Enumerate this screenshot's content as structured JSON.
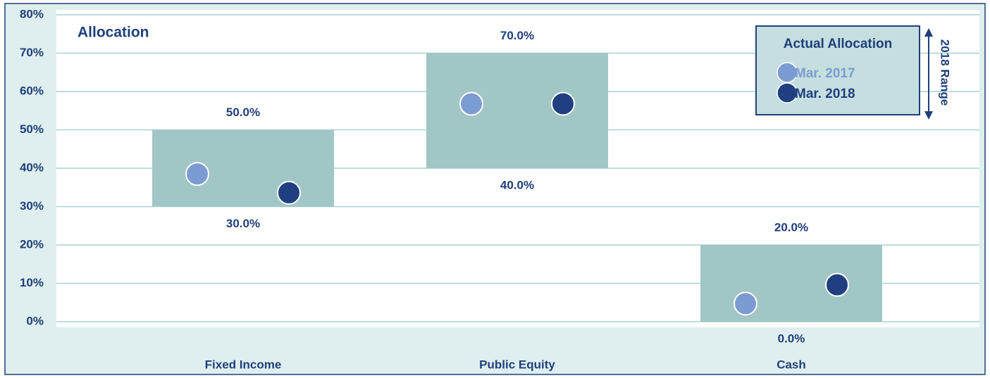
{
  "chart_data": {
    "type": "range",
    "title": "Allocation",
    "categories": [
      "Fixed Income",
      "Public Equity",
      "Cash"
    ],
    "low": {
      "values": [
        30,
        40,
        0
      ],
      "value_labels": [
        "30.0%",
        "40.0%",
        "0.0%"
      ]
    },
    "high": {
      "values": [
        50,
        70,
        20
      ],
      "value_labels": [
        "50.0%",
        "70.0%",
        "20.0%"
      ]
    },
    "range_label": "2018 Range",
    "range_color": "#a0c6c6",
    "legend_title": "Actual Allocation",
    "series": [
      {
        "name": "Mar. 2017",
        "color": "#7b9bd3",
        "values": [
          38.5,
          56.8,
          4.7
        ]
      },
      {
        "name": "Mar. 2018",
        "color": "#1f3f80",
        "values": [
          33.6,
          56.8,
          9.6
        ]
      }
    ],
    "ylim": [
      0,
      80
    ],
    "yticks": [
      {
        "value": 0,
        "label": "0%"
      },
      {
        "value": 10,
        "label": "10%"
      },
      {
        "value": 20,
        "label": "20%"
      },
      {
        "value": 30,
        "label": "30%"
      },
      {
        "value": 40,
        "label": "40%"
      },
      {
        "value": 50,
        "label": "50%"
      },
      {
        "value": 60,
        "label": "60%"
      },
      {
        "value": 70,
        "label": "70%"
      },
      {
        "value": 80,
        "label": "80%"
      }
    ],
    "grid": true
  }
}
